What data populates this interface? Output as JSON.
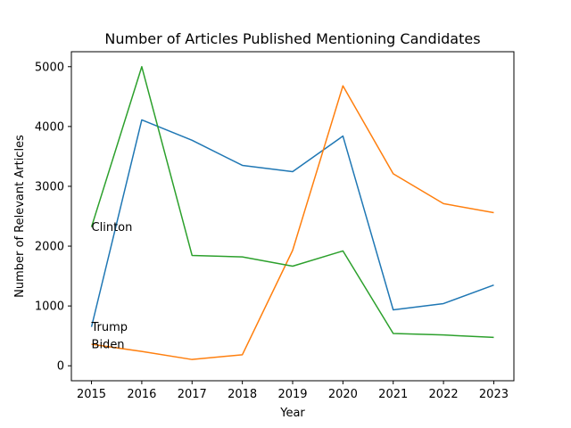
{
  "chart_data": {
    "type": "line",
    "title": "Number of Articles Published Mentioning Candidates",
    "xlabel": "Year",
    "ylabel": "Number of Relevant Articles",
    "x": [
      2015,
      2016,
      2017,
      2018,
      2019,
      2020,
      2021,
      2022,
      2023
    ],
    "xlim": [
      2014.6,
      2023.4
    ],
    "ylim": [
      -250,
      5250
    ],
    "yticks": [
      0,
      1000,
      2000,
      3000,
      4000,
      5000
    ],
    "grid": false,
    "legend": "none",
    "series": [
      {
        "color": "#1f77b4",
        "values": [
          650,
          4110,
          3770,
          3350,
          3245,
          3840,
          935,
          1040,
          1350
        ]
      },
      {
        "color": "#ff7f0e",
        "values": [
          360,
          240,
          105,
          185,
          1930,
          4680,
          3210,
          2710,
          2560
        ]
      },
      {
        "color": "#2ca02c",
        "values": [
          2320,
          5000,
          1845,
          1820,
          1665,
          1920,
          540,
          515,
          475
        ]
      }
    ],
    "annotations": [
      {
        "text": "Clinton",
        "x": 2015,
        "y": 2320
      },
      {
        "text": "Trump",
        "x": 2015,
        "y": 650
      },
      {
        "text": "Biden",
        "x": 2015,
        "y": 360
      }
    ]
  }
}
